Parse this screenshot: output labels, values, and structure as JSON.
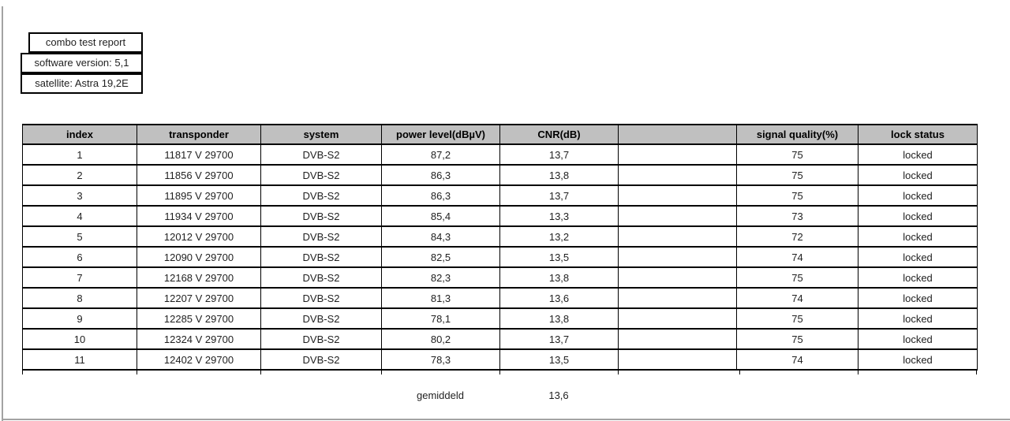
{
  "report": {
    "title": "combo test report",
    "software_version_label": "software version: 5,1",
    "satellite_label": "satellite: Astra 19,2E"
  },
  "table": {
    "headers": [
      "index",
      "transponder",
      "system",
      "power level(dBµV)",
      "CNR(dB)",
      "",
      "signal quality(%)",
      "lock status"
    ],
    "rows": [
      [
        "1",
        "11817 V 29700",
        "DVB-S2",
        "87,2",
        "13,7",
        "",
        "75",
        "locked"
      ],
      [
        "2",
        "11856 V 29700",
        "DVB-S2",
        "86,3",
        "13,8",
        "",
        "75",
        "locked"
      ],
      [
        "3",
        "11895 V 29700",
        "DVB-S2",
        "86,3",
        "13,7",
        "",
        "75",
        "locked"
      ],
      [
        "4",
        "11934 V 29700",
        "DVB-S2",
        "85,4",
        "13,3",
        "",
        "73",
        "locked"
      ],
      [
        "5",
        "12012 V 29700",
        "DVB-S2",
        "84,3",
        "13,2",
        "",
        "72",
        "locked"
      ],
      [
        "6",
        "12090 V 29700",
        "DVB-S2",
        "82,5",
        "13,5",
        "",
        "74",
        "locked"
      ],
      [
        "7",
        "12168 V 29700",
        "DVB-S2",
        "82,3",
        "13,8",
        "",
        "75",
        "locked"
      ],
      [
        "8",
        "12207 V 29700",
        "DVB-S2",
        "81,3",
        "13,6",
        "",
        "74",
        "locked"
      ],
      [
        "9",
        "12285 V 29700",
        "DVB-S2",
        "78,1",
        "13,8",
        "",
        "75",
        "locked"
      ],
      [
        "10",
        "12324 V 29700",
        "DVB-S2",
        "80,2",
        "13,7",
        "",
        "75",
        "locked"
      ],
      [
        "11",
        "12402 V 29700",
        "DVB-S2",
        "78,3",
        "13,5",
        "",
        "74",
        "locked"
      ]
    ],
    "footer": {
      "average_label": "gemiddeld",
      "average_cnr": "13,6"
    }
  }
}
